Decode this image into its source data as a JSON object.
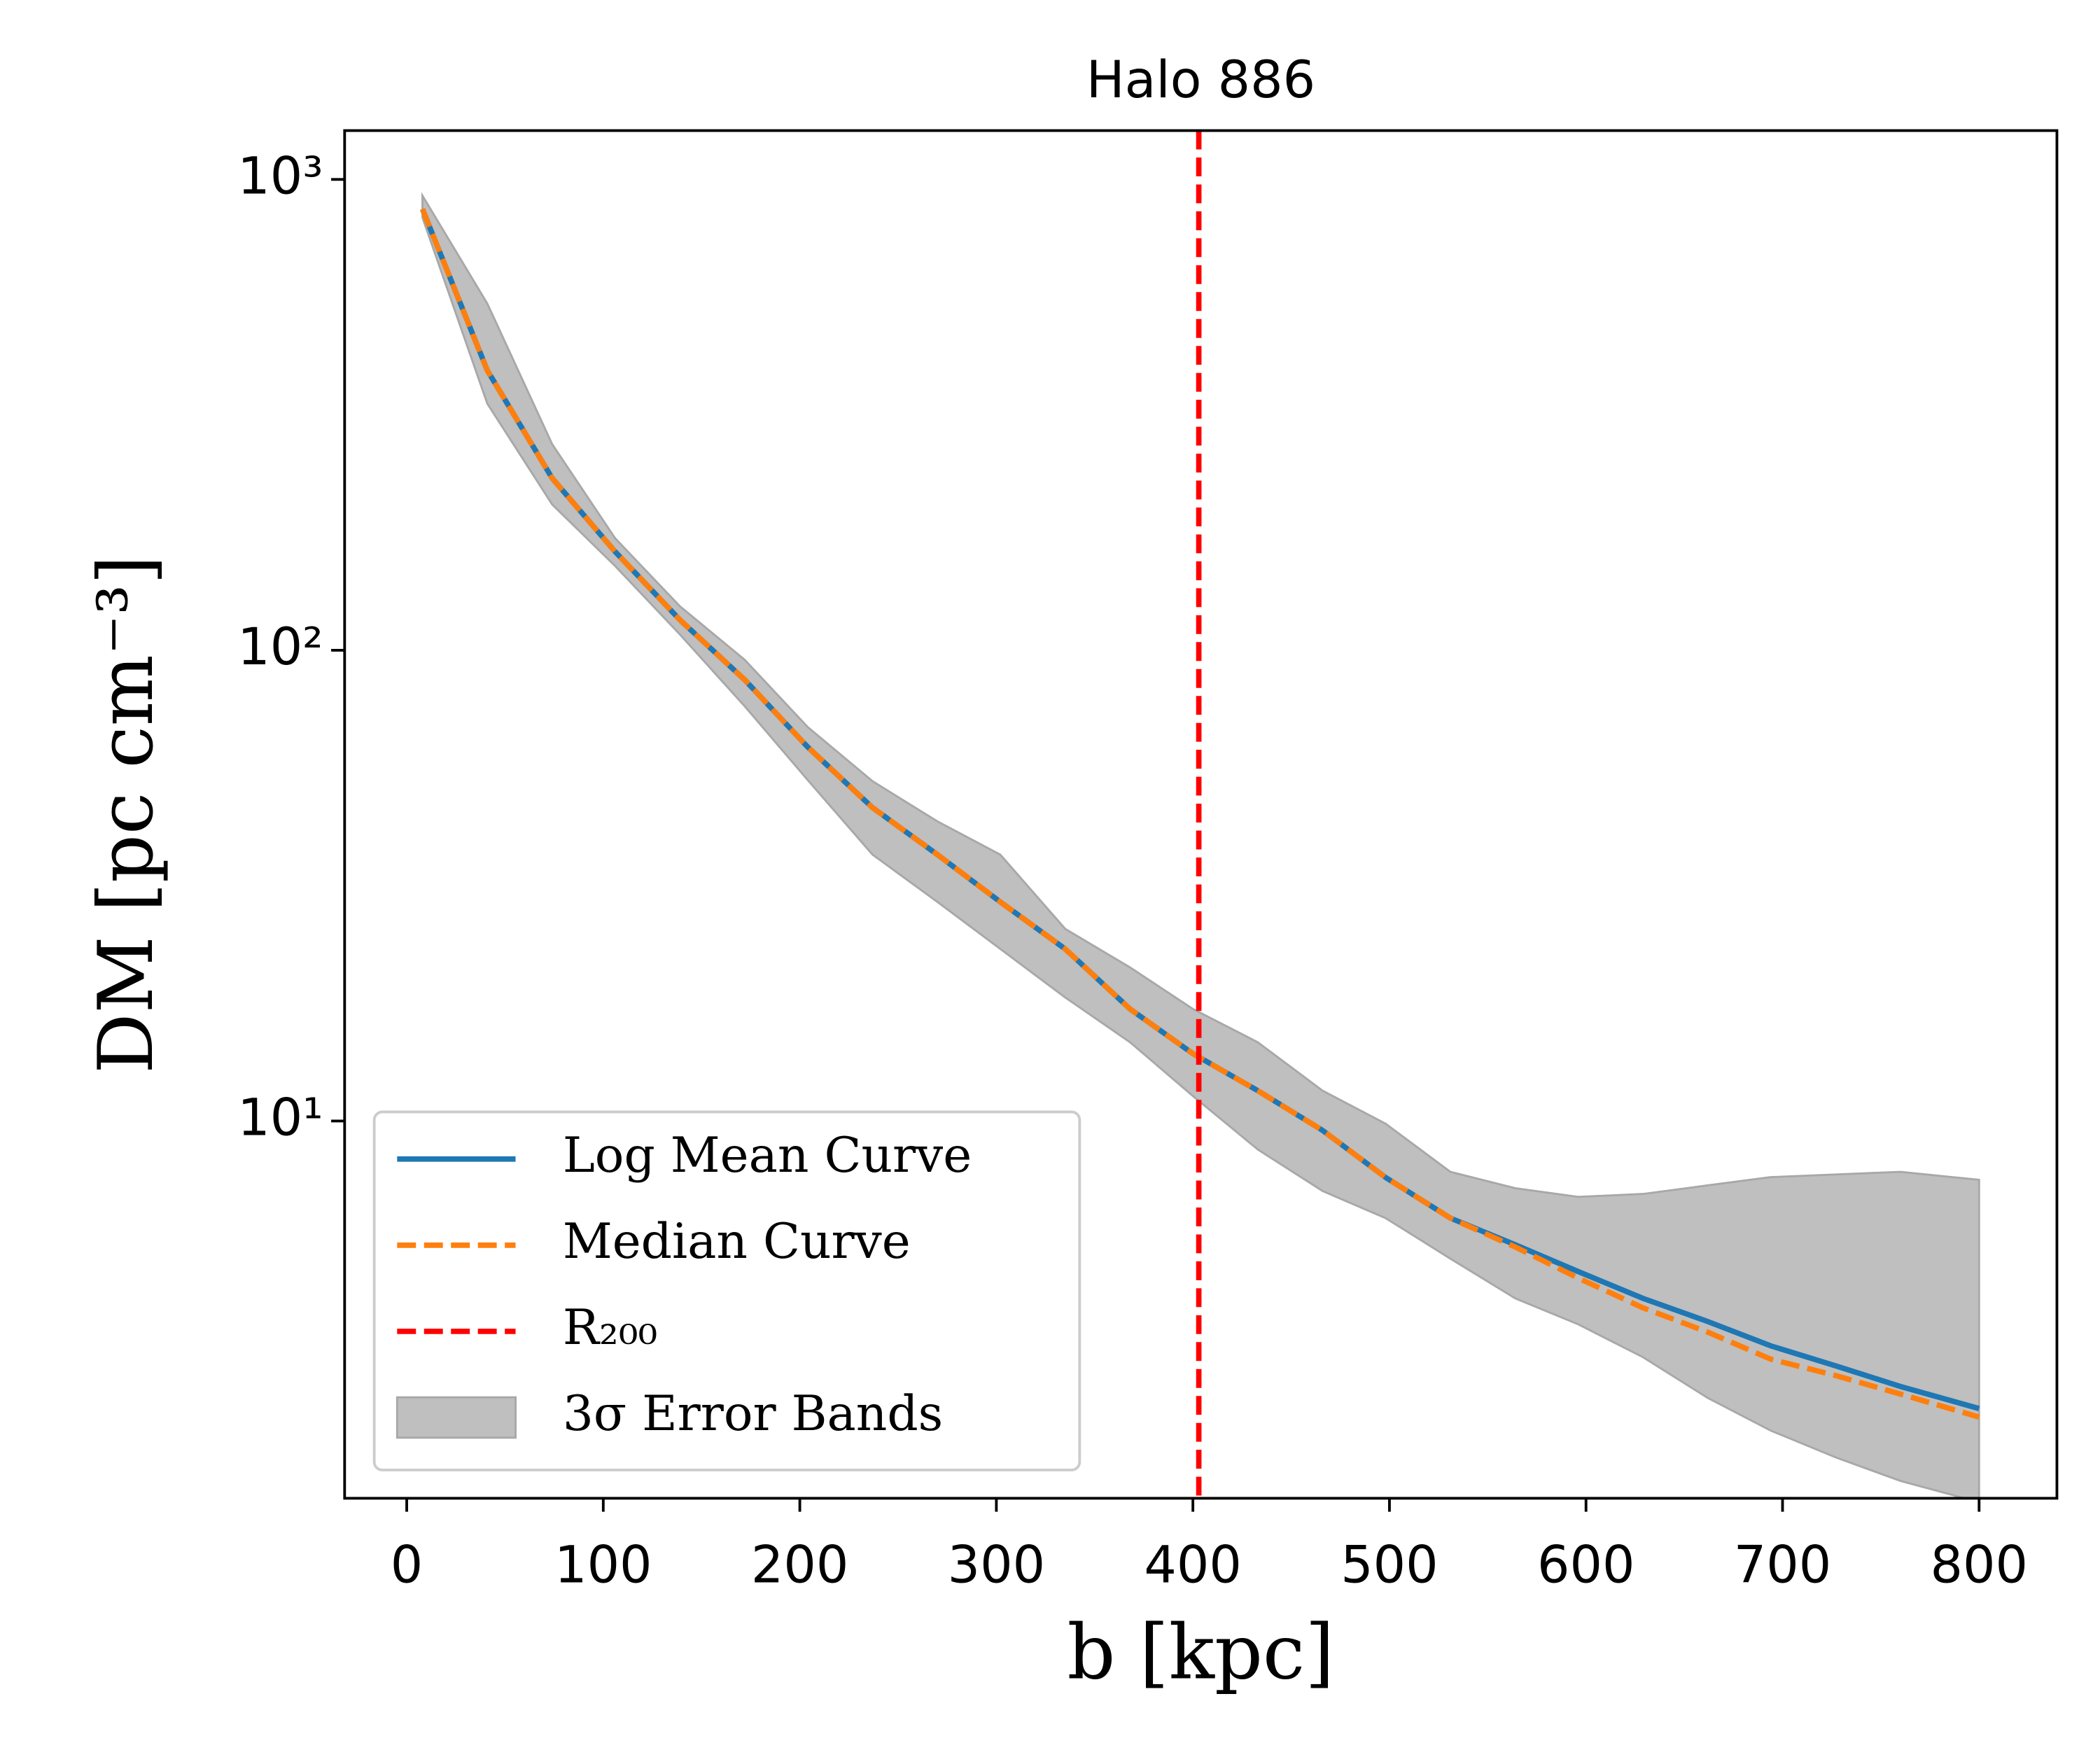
{
  "chart_data": {
    "type": "line",
    "title": "Halo 886",
    "xlabel": "b [kpc]",
    "ylabel": "DM [pc cm⁻³]",
    "x": [
      8,
      41,
      74,
      106,
      139,
      172,
      204,
      237,
      270,
      302,
      335,
      368,
      400,
      433,
      466,
      498,
      531,
      564,
      596,
      629,
      662,
      694,
      727,
      760,
      800
    ],
    "series": [
      {
        "name": "Log Mean Curve",
        "color": "#1f77b4",
        "dash": false,
        "values": [
          865,
          393,
          232,
          162,
          116,
          86.5,
          62.3,
          46.3,
          36.8,
          29.2,
          23.2,
          17.3,
          13.9,
          11.6,
          9.55,
          7.59,
          6.22,
          5.46,
          4.79,
          4.2,
          3.75,
          3.33,
          3.02,
          2.73,
          2.45
        ]
      },
      {
        "name": "Median Curve",
        "color": "#ff7f0e",
        "dash": true,
        "values": [
          865,
          393,
          232,
          162,
          116,
          86.5,
          62.3,
          46.3,
          36.8,
          29.2,
          23.2,
          17.3,
          13.9,
          11.6,
          9.55,
          7.59,
          6.22,
          5.4,
          4.64,
          4.01,
          3.56,
          3.12,
          2.88,
          2.63,
          2.35
        ]
      }
    ],
    "band": {
      "name": "3σ Error Bands",
      "color": "#bfbfbf",
      "upper": [
        924,
        545,
        274,
        173,
        124,
        95.4,
        68.7,
        52.7,
        43.3,
        36.8,
        25.6,
        21.2,
        17.3,
        14.7,
        11.6,
        9.87,
        7.8,
        7.2,
        6.9,
        7.0,
        7.3,
        7.6,
        7.7,
        7.8,
        7.5
      ],
      "lower": [
        830,
        334,
        204,
        151,
        108,
        76,
        53,
        36.8,
        29.2,
        23.2,
        18.3,
        14.7,
        11.3,
        8.7,
        7.1,
        6.22,
        5.1,
        4.2,
        3.7,
        3.15,
        2.58,
        2.2,
        1.93,
        1.72,
        1.55
      ]
    },
    "vline": {
      "name": "R₂₀₀",
      "x": 403,
      "color": "#ff0000"
    },
    "xlim": [
      -31.6,
      839.6
    ],
    "ylim": [
      1.58,
      1270
    ],
    "log_y": true,
    "xticks": [
      0,
      100,
      200,
      300,
      400,
      500,
      600,
      700,
      800
    ],
    "yticks": [
      {
        "value": 10,
        "label": "10¹"
      },
      {
        "value": 100,
        "label": "10²"
      },
      {
        "value": 1000,
        "label": "10³"
      }
    ],
    "legend": "lower left"
  }
}
